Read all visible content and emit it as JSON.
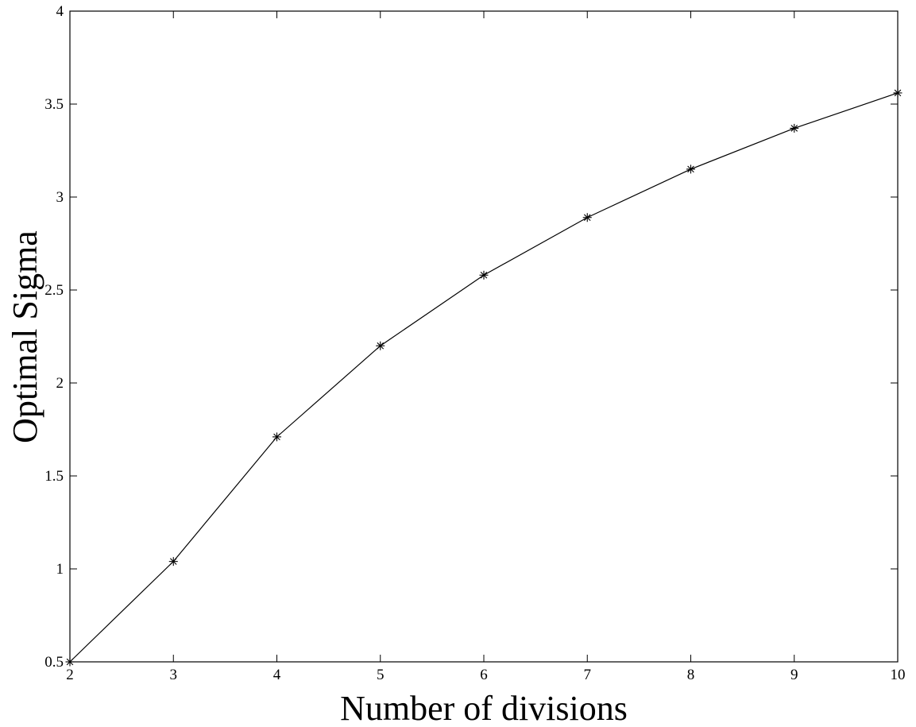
{
  "chart_data": {
    "type": "line",
    "title": "",
    "xlabel": "Number of divisions",
    "ylabel": "Optimal Sigma",
    "xlim": [
      2,
      10
    ],
    "ylim": [
      0.5,
      4
    ],
    "xticks": [
      "2",
      "3",
      "4",
      "5",
      "6",
      "7",
      "8",
      "9",
      "10"
    ],
    "yticks": [
      "0.5",
      "1",
      "1.5",
      "2",
      "2.5",
      "3",
      "3.5",
      "4"
    ],
    "grid": false,
    "marker": "asterisk",
    "line_color": "#000000",
    "series": [
      {
        "x": [
          2,
          3,
          4,
          5,
          6,
          7,
          8,
          9,
          10
        ],
        "y": [
          0.5,
          1.04,
          1.71,
          2.2,
          2.58,
          2.89,
          3.15,
          3.37,
          3.56
        ]
      }
    ]
  }
}
